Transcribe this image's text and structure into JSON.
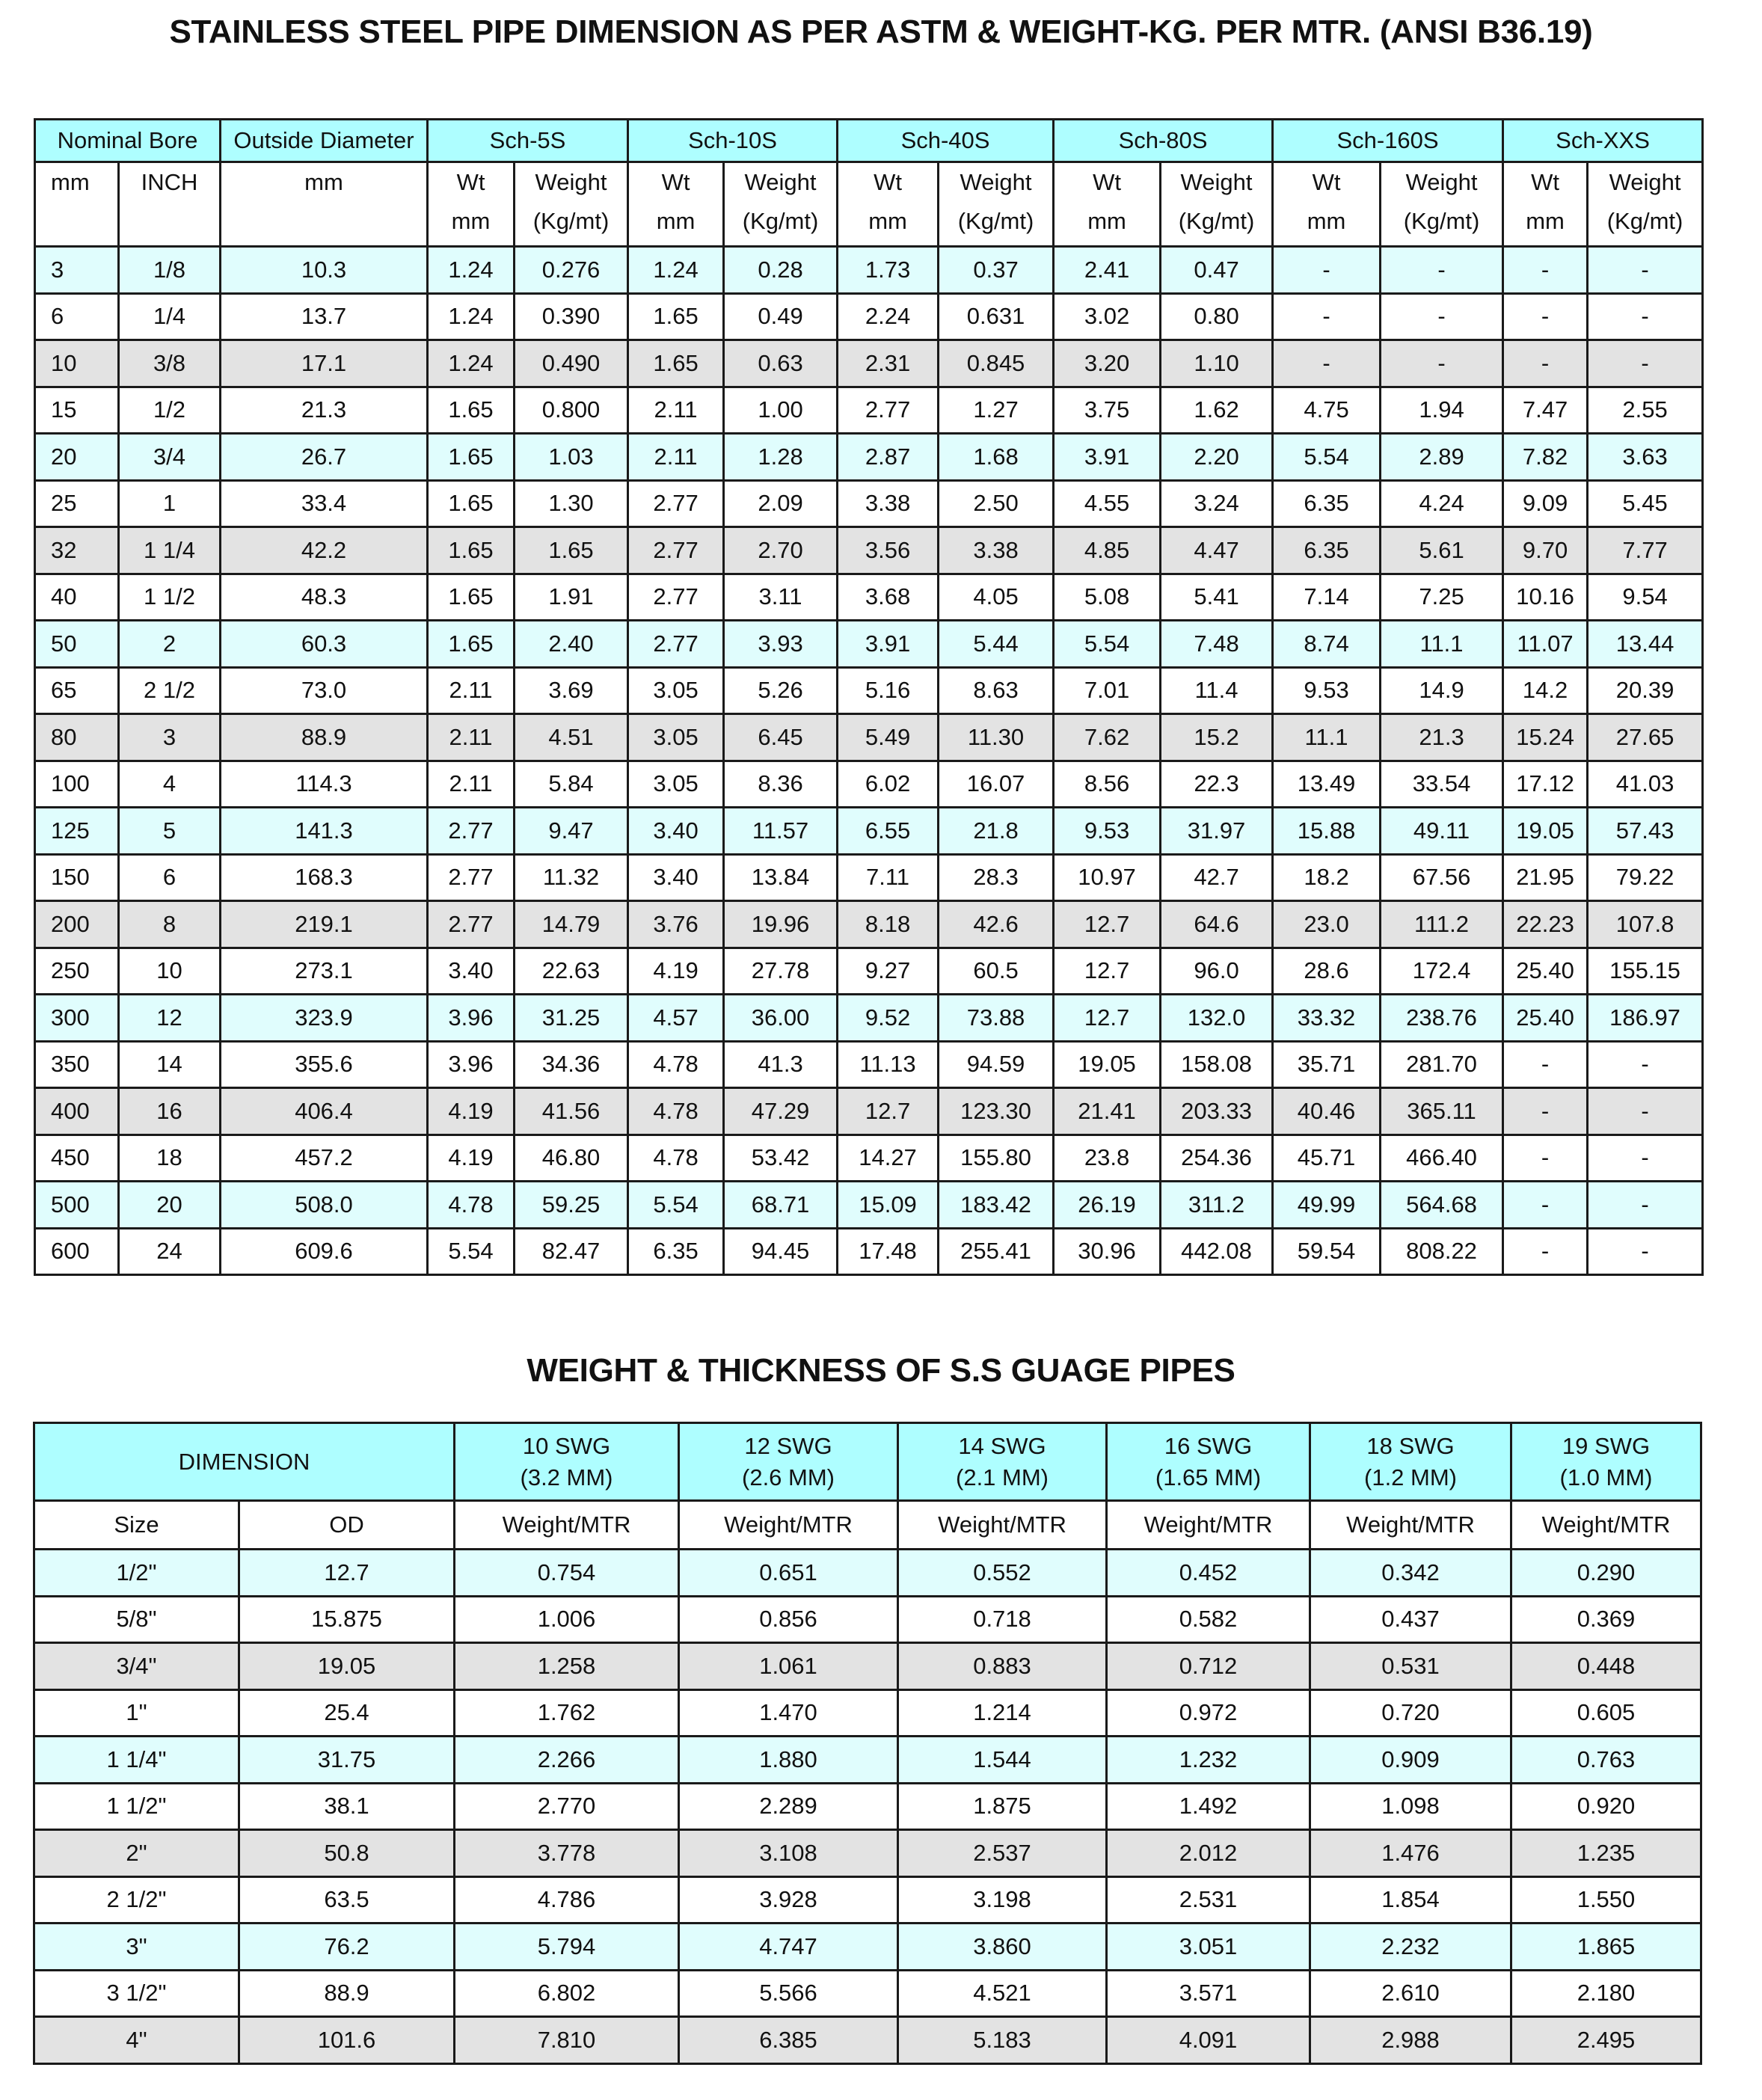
{
  "colors": {
    "header": "#aefeff",
    "row_cyan": "#e0fdfd",
    "row_white": "#ffffff",
    "row_gray": "#e3e3e3",
    "border": "#1a1a1a"
  },
  "table1": {
    "title": "STAINLESS STEEL PIPE DIMENSION AS PER ASTM & WEIGHT-KG. PER MTR. (ANSI B36.19)",
    "group_headers": [
      "Nominal Bore",
      "Outside Diameter",
      "Sch-5S",
      "Sch-10S",
      "Sch-40S",
      "Sch-80S",
      "Sch-160S",
      "Sch-XXS"
    ],
    "sub_headers": {
      "mm": "mm",
      "inch": "INCH",
      "od": "mm",
      "wt_line1": "Wt",
      "wt_line2": "mm",
      "weight_line1": "Weight",
      "weight_line2": "(Kg/mt)"
    },
    "rows": [
      [
        "3",
        "1/8",
        "10.3",
        "1.24",
        "0.276",
        "1.24",
        "0.28",
        "1.73",
        "0.37",
        "2.41",
        "0.47",
        "-",
        "-",
        "-",
        "-"
      ],
      [
        "6",
        "1/4",
        "13.7",
        "1.24",
        "0.390",
        "1.65",
        "0.49",
        "2.24",
        "0.631",
        "3.02",
        "0.80",
        "-",
        "-",
        "-",
        "-"
      ],
      [
        "10",
        "3/8",
        "17.1",
        "1.24",
        "0.490",
        "1.65",
        "0.63",
        "2.31",
        "0.845",
        "3.20",
        "1.10",
        "-",
        "-",
        "-",
        "-"
      ],
      [
        "15",
        "1/2",
        "21.3",
        "1.65",
        "0.800",
        "2.11",
        "1.00",
        "2.77",
        "1.27",
        "3.75",
        "1.62",
        "4.75",
        "1.94",
        "7.47",
        "2.55"
      ],
      [
        "20",
        "3/4",
        "26.7",
        "1.65",
        "1.03",
        "2.11",
        "1.28",
        "2.87",
        "1.68",
        "3.91",
        "2.20",
        "5.54",
        "2.89",
        "7.82",
        "3.63"
      ],
      [
        "25",
        "1",
        "33.4",
        "1.65",
        "1.30",
        "2.77",
        "2.09",
        "3.38",
        "2.50",
        "4.55",
        "3.24",
        "6.35",
        "4.24",
        "9.09",
        "5.45"
      ],
      [
        "32",
        "1 1/4",
        "42.2",
        "1.65",
        "1.65",
        "2.77",
        "2.70",
        "3.56",
        "3.38",
        "4.85",
        "4.47",
        "6.35",
        "5.61",
        "9.70",
        "7.77"
      ],
      [
        "40",
        "1 1/2",
        "48.3",
        "1.65",
        "1.91",
        "2.77",
        "3.11",
        "3.68",
        "4.05",
        "5.08",
        "5.41",
        "7.14",
        "7.25",
        "10.16",
        "9.54"
      ],
      [
        "50",
        "2",
        "60.3",
        "1.65",
        "2.40",
        "2.77",
        "3.93",
        "3.91",
        "5.44",
        "5.54",
        "7.48",
        "8.74",
        "11.1",
        "11.07",
        "13.44"
      ],
      [
        "65",
        "2 1/2",
        "73.0",
        "2.11",
        "3.69",
        "3.05",
        "5.26",
        "5.16",
        "8.63",
        "7.01",
        "11.4",
        "9.53",
        "14.9",
        "14.2",
        "20.39"
      ],
      [
        "80",
        "3",
        "88.9",
        "2.11",
        "4.51",
        "3.05",
        "6.45",
        "5.49",
        "11.30",
        "7.62",
        "15.2",
        "11.1",
        "21.3",
        "15.24",
        "27.65"
      ],
      [
        "100",
        "4",
        "114.3",
        "2.11",
        "5.84",
        "3.05",
        "8.36",
        "6.02",
        "16.07",
        "8.56",
        "22.3",
        "13.49",
        "33.54",
        "17.12",
        "41.03"
      ],
      [
        "125",
        "5",
        "141.3",
        "2.77",
        "9.47",
        "3.40",
        "11.57",
        "6.55",
        "21.8",
        "9.53",
        "31.97",
        "15.88",
        "49.11",
        "19.05",
        "57.43"
      ],
      [
        "150",
        "6",
        "168.3",
        "2.77",
        "11.32",
        "3.40",
        "13.84",
        "7.11",
        "28.3",
        "10.97",
        "42.7",
        "18.2",
        "67.56",
        "21.95",
        "79.22"
      ],
      [
        "200",
        "8",
        "219.1",
        "2.77",
        "14.79",
        "3.76",
        "19.96",
        "8.18",
        "42.6",
        "12.7",
        "64.6",
        "23.0",
        "111.2",
        "22.23",
        "107.8"
      ],
      [
        "250",
        "10",
        "273.1",
        "3.40",
        "22.63",
        "4.19",
        "27.78",
        "9.27",
        "60.5",
        "12.7",
        "96.0",
        "28.6",
        "172.4",
        "25.40",
        "155.15"
      ],
      [
        "300",
        "12",
        "323.9",
        "3.96",
        "31.25",
        "4.57",
        "36.00",
        "9.52",
        "73.88",
        "12.7",
        "132.0",
        "33.32",
        "238.76",
        "25.40",
        "186.97"
      ],
      [
        "350",
        "14",
        "355.6",
        "3.96",
        "34.36",
        "4.78",
        "41.3",
        "11.13",
        "94.59",
        "19.05",
        "158.08",
        "35.71",
        "281.70",
        "-",
        "-"
      ],
      [
        "400",
        "16",
        "406.4",
        "4.19",
        "41.56",
        "4.78",
        "47.29",
        "12.7",
        "123.30",
        "21.41",
        "203.33",
        "40.46",
        "365.11",
        "-",
        "-"
      ],
      [
        "450",
        "18",
        "457.2",
        "4.19",
        "46.80",
        "4.78",
        "53.42",
        "14.27",
        "155.80",
        "23.8",
        "254.36",
        "45.71",
        "466.40",
        "-",
        "-"
      ],
      [
        "500",
        "20",
        "508.0",
        "4.78",
        "59.25",
        "5.54",
        "68.71",
        "15.09",
        "183.42",
        "26.19",
        "311.2",
        "49.99",
        "564.68",
        "-",
        "-"
      ],
      [
        "600",
        "24",
        "609.6",
        "5.54",
        "82.47",
        "6.35",
        "94.45",
        "17.48",
        "255.41",
        "30.96",
        "442.08",
        "59.54",
        "808.22",
        "-",
        "-"
      ]
    ]
  },
  "table2": {
    "title": "WEIGHT & THICKNESS OF S.S GUAGE PIPES",
    "dimension_header": "DIMENSION",
    "gauge_headers": [
      {
        "gauge": "10 SWG",
        "thickness": "(3.2 MM)"
      },
      {
        "gauge": "12 SWG",
        "thickness": "(2.6 MM)"
      },
      {
        "gauge": "14 SWG",
        "thickness": "(2.1 MM)"
      },
      {
        "gauge": "16 SWG",
        "thickness": "(1.65 MM)"
      },
      {
        "gauge": "18 SWG",
        "thickness": "(1.2 MM)"
      },
      {
        "gauge": "19 SWG",
        "thickness": "(1.0 MM)"
      }
    ],
    "size_header": "Size",
    "od_header": "OD",
    "weight_header": "Weight/MTR",
    "rows": [
      [
        "1/2\"",
        "12.7",
        "0.754",
        "0.651",
        "0.552",
        "0.452",
        "0.342",
        "0.290"
      ],
      [
        "5/8\"",
        "15.875",
        "1.006",
        "0.856",
        "0.718",
        "0.582",
        "0.437",
        "0.369"
      ],
      [
        "3/4\"",
        "19.05",
        "1.258",
        "1.061",
        "0.883",
        "0.712",
        "0.531",
        "0.448"
      ],
      [
        "1\"",
        "25.4",
        "1.762",
        "1.470",
        "1.214",
        "0.972",
        "0.720",
        "0.605"
      ],
      [
        "1 1/4\"",
        "31.75",
        "2.266",
        "1.880",
        "1.544",
        "1.232",
        "0.909",
        "0.763"
      ],
      [
        "1 1/2\"",
        "38.1",
        "2.770",
        "2.289",
        "1.875",
        "1.492",
        "1.098",
        "0.920"
      ],
      [
        "2\"",
        "50.8",
        "3.778",
        "3.108",
        "2.537",
        "2.012",
        "1.476",
        "1.235"
      ],
      [
        "2 1/2\"",
        "63.5",
        "4.786",
        "3.928",
        "3.198",
        "2.531",
        "1.854",
        "1.550"
      ],
      [
        "3\"",
        "76.2",
        "5.794",
        "4.747",
        "3.860",
        "3.051",
        "2.232",
        "1.865"
      ],
      [
        "3 1/2\"",
        "88.9",
        "6.802",
        "5.566",
        "4.521",
        "3.571",
        "2.610",
        "2.180"
      ],
      [
        "4\"",
        "101.6",
        "7.810",
        "6.385",
        "5.183",
        "4.091",
        "2.988",
        "2.495"
      ]
    ]
  }
}
